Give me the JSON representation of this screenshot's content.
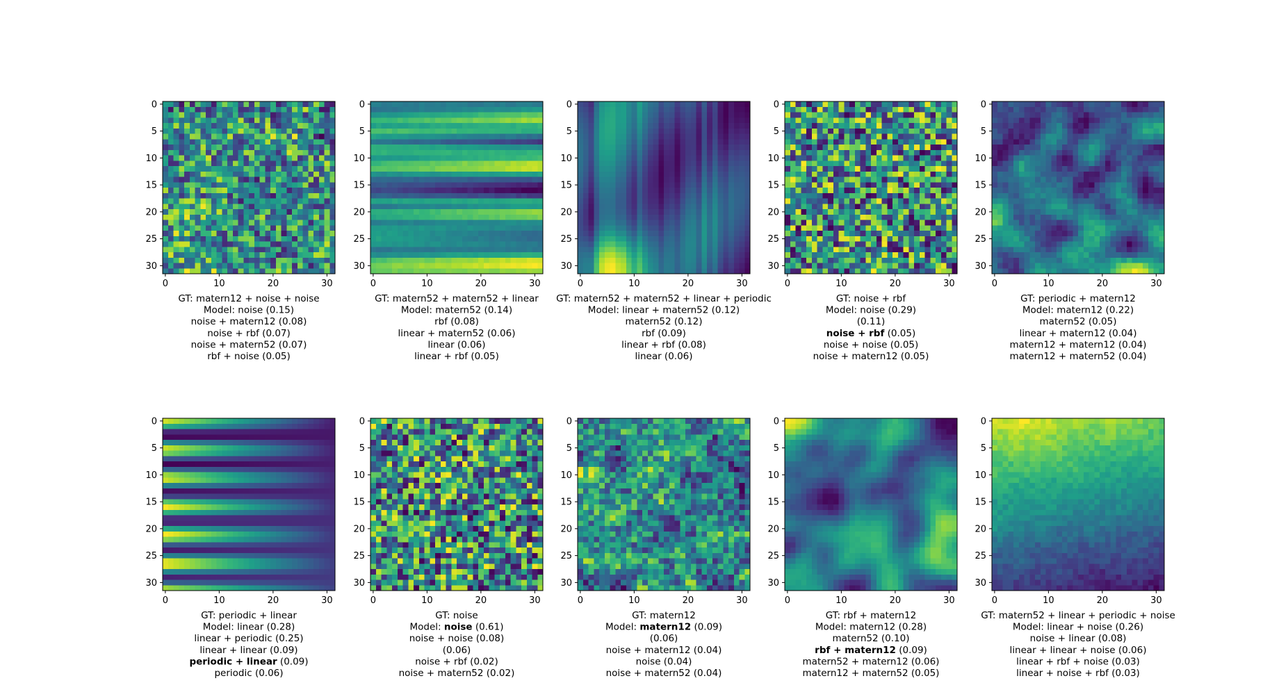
{
  "chart_data": {
    "type": "heatmap",
    "colormap": "viridis",
    "grid_size": 32,
    "xticks": [
      0,
      10,
      20,
      30
    ],
    "yticks": [
      0,
      5,
      10,
      15,
      20,
      25,
      30
    ],
    "xlim": [
      -0.5,
      31.5
    ],
    "ylim": [
      31.5,
      -0.5
    ],
    "grid": false,
    "panels": [
      {
        "pattern": "noise",
        "seed": 11,
        "caption": [
          [
            {
              "t": "GT: matern12 + noise + noise"
            }
          ],
          [
            {
              "t": "Model: noise (0.15)"
            }
          ],
          [
            {
              "t": "noise + matern12 (0.08)"
            }
          ],
          [
            {
              "t": "noise + rbf (0.07)"
            }
          ],
          [
            {
              "t": "noise + matern52 (0.07)"
            }
          ],
          [
            {
              "t": "rbf + noise (0.05)"
            }
          ]
        ]
      },
      {
        "pattern": "hbands",
        "seed": 12,
        "caption": [
          [
            {
              "t": "GT: matern52 + matern52 + linear"
            }
          ],
          [
            {
              "t": "Model: matern52 (0.14)"
            }
          ],
          [
            {
              "t": "rbf (0.08)"
            }
          ],
          [
            {
              "t": "linear + matern52 (0.06)"
            }
          ],
          [
            {
              "t": "linear (0.06)"
            }
          ],
          [
            {
              "t": "linear + rbf (0.05)"
            }
          ]
        ]
      },
      {
        "pattern": "vsmooth",
        "seed": 13,
        "caption": [
          [
            {
              "t": "GT: matern52 + matern52 + linear + periodic"
            }
          ],
          [
            {
              "t": "Model: linear + matern52 (0.12)"
            }
          ],
          [
            {
              "t": "matern52 (0.12)"
            }
          ],
          [
            {
              "t": "rbf (0.09)"
            }
          ],
          [
            {
              "t": "linear + rbf (0.08)"
            }
          ],
          [
            {
              "t": "linear (0.06)"
            }
          ]
        ]
      },
      {
        "pattern": "white",
        "seed": 14,
        "caption": [
          [
            {
              "t": "GT: noise + rbf"
            }
          ],
          [
            {
              "t": "Model: noise (0.29)"
            }
          ],
          [
            {
              "t": "(0.11)"
            }
          ],
          [
            {
              "t": "noise + rbf",
              "b": true
            },
            {
              "t": " (0.05)"
            }
          ],
          [
            {
              "t": "noise + noise (0.05)"
            }
          ],
          [
            {
              "t": "noise + matern12 (0.05)"
            }
          ]
        ]
      },
      {
        "pattern": "blobs",
        "seed": 15,
        "caption": [
          [
            {
              "t": "GT: periodic + matern12"
            }
          ],
          [
            {
              "t": "Model: matern12 (0.22)"
            }
          ],
          [
            {
              "t": "matern52 (0.05)"
            }
          ],
          [
            {
              "t": "linear + matern12 (0.04)"
            }
          ],
          [
            {
              "t": "matern12 + matern12 (0.04)"
            }
          ],
          [
            {
              "t": "matern12 + matern52 (0.04)"
            }
          ]
        ]
      },
      {
        "pattern": "periodic",
        "seed": 16,
        "caption": [
          [
            {
              "t": "GT: periodic + linear"
            }
          ],
          [
            {
              "t": "Model: linear (0.28)"
            }
          ],
          [
            {
              "t": "linear + periodic (0.25)"
            }
          ],
          [
            {
              "t": "linear + linear (0.09)"
            }
          ],
          [
            {
              "t": "periodic + linear",
              "b": true
            },
            {
              "t": " (0.09)"
            }
          ],
          [
            {
              "t": "periodic (0.06)"
            }
          ]
        ]
      },
      {
        "pattern": "white",
        "seed": 17,
        "caption": [
          [
            {
              "t": "GT: noise"
            }
          ],
          [
            {
              "t": "Model: "
            },
            {
              "t": "noise",
              "b": true
            },
            {
              "t": " (0.61)"
            }
          ],
          [
            {
              "t": "noise + noise (0.08)"
            }
          ],
          [
            {
              "t": "(0.06)"
            }
          ],
          [
            {
              "t": "noise + rbf (0.02)"
            }
          ],
          [
            {
              "t": "noise + matern52 (0.02)"
            }
          ]
        ]
      },
      {
        "pattern": "rough",
        "seed": 18,
        "caption": [
          [
            {
              "t": "GT: matern12"
            }
          ],
          [
            {
              "t": "Model: "
            },
            {
              "t": "matern12",
              "b": true
            },
            {
              "t": " (0.09)"
            }
          ],
          [
            {
              "t": "(0.06)"
            }
          ],
          [
            {
              "t": "noise + matern12 (0.04)"
            }
          ],
          [
            {
              "t": "noise (0.04)"
            }
          ],
          [
            {
              "t": "noise + matern52 (0.04)"
            }
          ]
        ]
      },
      {
        "pattern": "smoothblobs",
        "seed": 19,
        "caption": [
          [
            {
              "t": "GT: rbf + matern12"
            }
          ],
          [
            {
              "t": "Model: matern12 (0.28)"
            }
          ],
          [
            {
              "t": "matern52 (0.10)"
            }
          ],
          [
            {
              "t": "rbf + matern12",
              "b": true
            },
            {
              "t": " (0.09)"
            }
          ],
          [
            {
              "t": "matern52 + matern12 (0.06)"
            }
          ],
          [
            {
              "t": "matern12 + matern52 (0.05)"
            }
          ]
        ]
      },
      {
        "pattern": "gradient",
        "seed": 20,
        "caption": [
          [
            {
              "t": "GT: matern52 + linear + periodic + noise"
            }
          ],
          [
            {
              "t": "Model: linear + noise (0.26)"
            }
          ],
          [
            {
              "t": "noise + linear (0.08)"
            }
          ],
          [
            {
              "t": "linear + linear + noise (0.06)"
            }
          ],
          [
            {
              "t": "linear + rbf + noise (0.03)"
            }
          ],
          [
            {
              "t": "linear + noise + rbf (0.03)"
            }
          ]
        ]
      }
    ]
  }
}
